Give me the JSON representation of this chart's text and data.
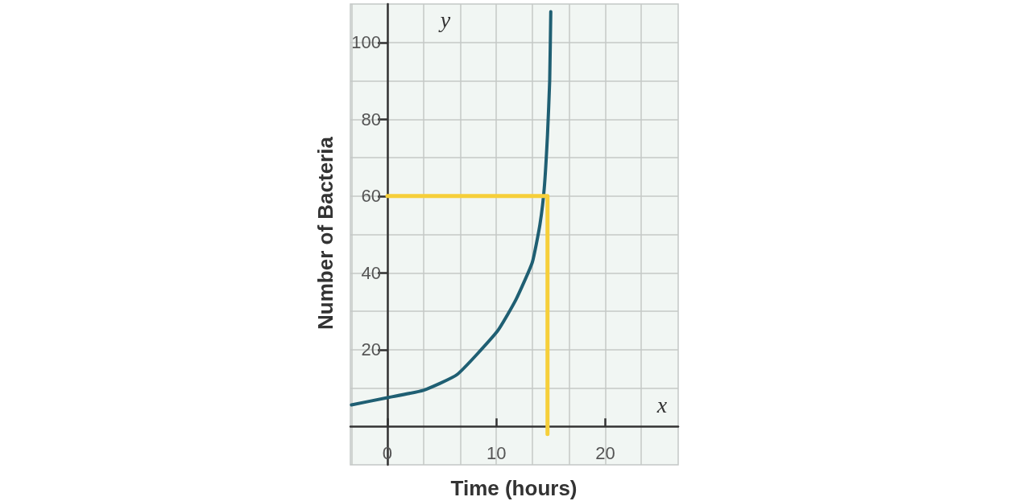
{
  "chart_data": {
    "type": "line",
    "xlabel": "Time (hours)",
    "ylabel": "Number of Bacteria",
    "annotations": [
      "y",
      "x"
    ],
    "xlim": [
      -3.4,
      26.7
    ],
    "ylim": [
      -10,
      110
    ],
    "xticks": [
      {
        "value": -3.3,
        "label": null
      },
      0,
      {
        "value": 3.3,
        "label": null
      },
      {
        "value": 6.7,
        "label": null
      },
      10,
      {
        "value": 13.3,
        "label": null
      },
      {
        "value": 16.7,
        "label": null
      },
      20,
      {
        "value": 23.3,
        "label": null
      }
    ],
    "yticks": [
      {
        "value": 10,
        "label": null
      },
      20,
      {
        "value": 30,
        "label": null
      },
      40,
      {
        "value": 50,
        "label": null
      },
      60,
      {
        "value": 70,
        "label": null
      },
      80,
      {
        "value": 90,
        "label": null
      },
      100
    ],
    "grid": true,
    "series": [
      {
        "color": "#1f5f73",
        "x": [
          -3.3,
          0,
          3.3,
          6.4,
          10.1,
          11.8,
          13.3,
          14.0,
          14.4,
          14.7,
          14.9,
          15.0
        ],
        "values": [
          5.6,
          7.5,
          9.4,
          13.5,
          24.8,
          33,
          42.7,
          52.5,
          62,
          76,
          90,
          108
        ]
      },
      {
        "color": "#f6cf3a",
        "x": [
          0,
          14.7,
          14.7
        ],
        "values": [
          60,
          60,
          -2
        ]
      }
    ]
  }
}
